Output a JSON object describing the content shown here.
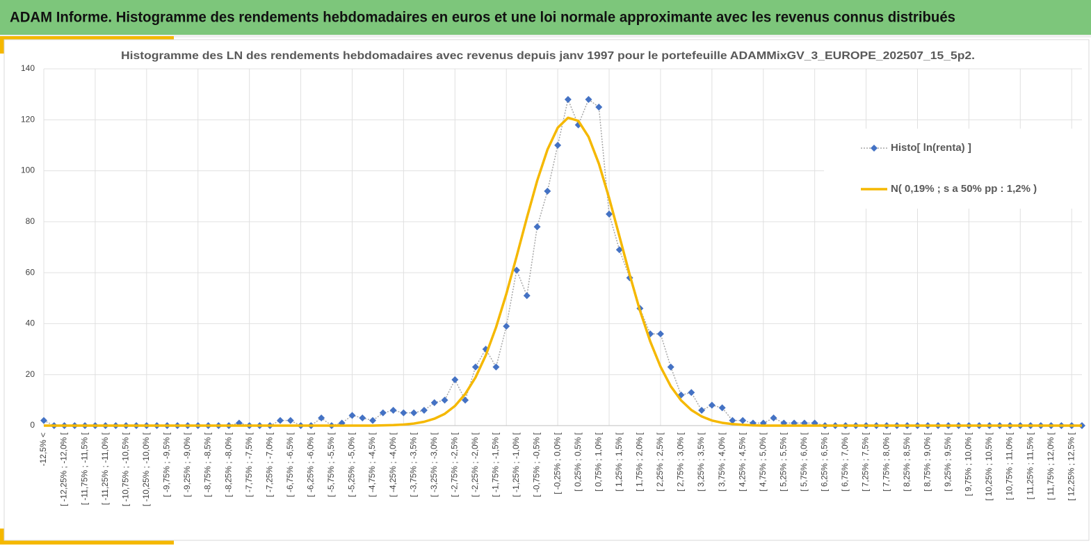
{
  "page_title": "ADAM Informe. Histogramme des rendements hebdomadaires en euros et une loi normale approximante avec les revenus connus distribués",
  "chart_data": {
    "type": "line",
    "title": "Histogramme des LN des rendements hebdomadaires avec revenus depuis janv 1997 pour le portefeuille ADAMMixGV_3_EUROPE_202507_15_5p2.",
    "categories": [
      "-12,5% <",
      null,
      "[ -12,25% ; -12,0% [",
      null,
      "[ -11,75% ; -11,5% [",
      null,
      "[ -11,25% ; -11,0% [",
      null,
      "[ -10,75% ; -10,5% [",
      null,
      "[ -10,25% ; -10,0% [",
      null,
      "[ -9,75% ; -9,5% [",
      null,
      "[ -9,25% ; -9,0% [",
      null,
      "[ -8,75% ; -8,5% [",
      null,
      "[ -8,25% ; -8,0% [",
      null,
      "[ -7,75% ; -7,5% [",
      null,
      "[ -7,25% ; -7,0% [",
      null,
      "[ -6,75% ; -6,5% [",
      null,
      "[ -6,25% ; -6,0% [",
      null,
      "[ -5,75% ; -5,5% [",
      null,
      "[ -5,25% ; -5,0% [",
      null,
      "[ -4,75% ; -4,5% [",
      null,
      "[ -4,25% ; -4,0% [",
      null,
      "[ -3,75% ; -3,5% [",
      null,
      "[ -3,25% ; -3,0% [",
      null,
      "[ -2,75% ; -2,5% [",
      null,
      "[ -2,25% ; -2,0% [",
      null,
      "[ -1,75% ; -1,5% [",
      null,
      "[ -1,25% ; -1,0% [",
      null,
      "[ -0,75% ; -0,5% [",
      null,
      "[ -0,25% ; 0,0% [",
      null,
      "[ 0,25% ; 0,5% [",
      null,
      "[ 0,75% ; 1,0% [",
      null,
      "[ 1,25% ; 1,5% [",
      null,
      "[ 1,75% ; 2,0% [",
      null,
      "[ 2,25% ; 2,5% [",
      null,
      "[ 2,75% ; 3,0% [",
      null,
      "[ 3,25% ; 3,5% [",
      null,
      "[ 3,75% ; 4,0% [",
      null,
      "[ 4,25% ; 4,5% [",
      null,
      "[ 4,75% ; 5,0% [",
      null,
      "[ 5,25% ; 5,5% [",
      null,
      "[ 5,75% ; 6,0% [",
      null,
      "[ 6,25% ; 6,5% [",
      null,
      "[ 6,75% ; 7,0% [",
      null,
      "[ 7,25% ; 7,5% [",
      null,
      "[ 7,75% ; 8,0% [",
      null,
      "[ 8,25% ; 8,5% [",
      null,
      "[ 8,75% ; 9,0% [",
      null,
      "[ 9,25% ; 9,5% [",
      null,
      "[ 9,75% ; 10,0% [",
      null,
      "[ 10,25% ; 10,5% [",
      null,
      "[ 10,75% ; 11,0% [",
      null,
      "[ 11,25% ; 11,5% [",
      null,
      "[ 11,75% ; 12,0% [",
      null,
      "[ 12,25% ; 12,5% [",
      null
    ],
    "series": [
      {
        "name": "Histo[ ln(renta) ]",
        "color": "#4472c4",
        "line_color": "#a6a6a6",
        "values": [
          2,
          0,
          0,
          0,
          0,
          0,
          0,
          0,
          0,
          0,
          0,
          0,
          0,
          0,
          0,
          0,
          0,
          0,
          0,
          1,
          0,
          0,
          0,
          2,
          2,
          0,
          0,
          3,
          0,
          1,
          4,
          3,
          2,
          5,
          6,
          5,
          5,
          6,
          9,
          10,
          18,
          10,
          23,
          30,
          23,
          39,
          61,
          51,
          78,
          92,
          110,
          128,
          118,
          128,
          125,
          83,
          69,
          58,
          46,
          36,
          36,
          23,
          12,
          13,
          6,
          8,
          7,
          2,
          2,
          1,
          1,
          3,
          1,
          1,
          1,
          1,
          0,
          0,
          0,
          0,
          0,
          0,
          0,
          0,
          0,
          0,
          0,
          0,
          0,
          0,
          0,
          0,
          0,
          0,
          0,
          0,
          0,
          0,
          0,
          0,
          0,
          0
        ]
      },
      {
        "name": "N( 0,19% ; s a 50% pp : 1,2% )",
        "color": "#f5b800",
        "values": [
          0,
          0,
          0,
          0,
          0,
          0,
          0,
          0,
          0,
          0,
          0,
          0,
          0,
          0,
          0,
          0,
          0,
          0,
          0,
          0,
          0,
          0,
          0,
          0,
          0,
          0,
          0,
          0,
          0,
          0,
          0,
          0,
          0,
          0.1,
          0.2,
          0.4,
          0.8,
          1.5,
          2.7,
          4.6,
          7.7,
          12.4,
          18.9,
          27.6,
          38.6,
          51.7,
          66.4,
          81.6,
          96.1,
          108.3,
          116.9,
          120.8,
          119.6,
          113.3,
          102.8,
          89.3,
          74.3,
          59.2,
          45.1,
          33.0,
          23.1,
          15.4,
          9.9,
          6.1,
          3.6,
          2.0,
          1.1,
          0.6,
          0.3,
          0.1,
          0,
          0,
          0,
          0,
          0,
          0,
          0,
          0,
          0,
          0,
          0,
          0,
          0,
          0,
          0,
          0,
          0,
          0,
          0,
          0,
          0,
          0,
          0,
          0,
          0,
          0,
          0,
          0,
          0,
          0,
          0,
          0
        ]
      }
    ],
    "ylim": [
      0,
      140
    ],
    "yticks": [
      0,
      20,
      40,
      60,
      80,
      100,
      120,
      140
    ],
    "grid": true,
    "legend": "right"
  }
}
